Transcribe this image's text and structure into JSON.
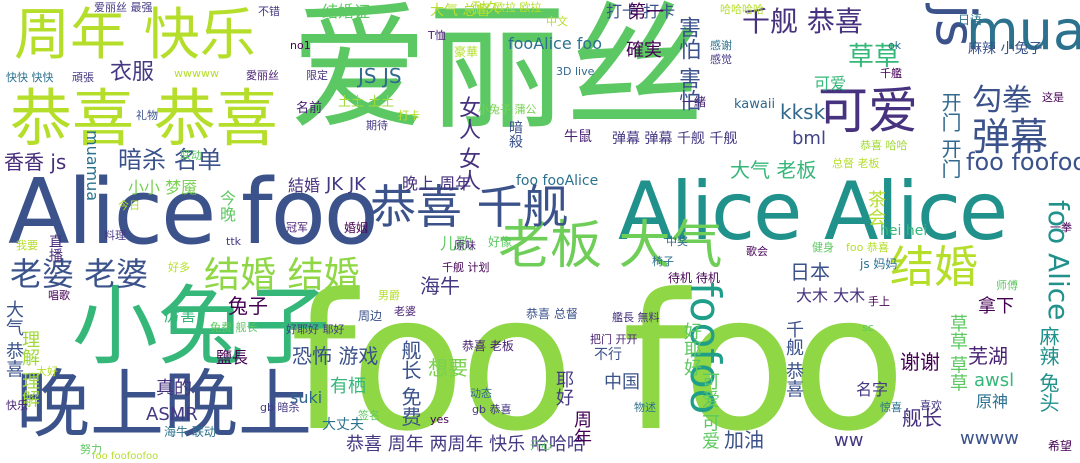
{
  "words": [
    {
      "text": "爱丽丝",
      "color": "#5cc863"
    },
    {
      "text": "foo foo",
      "color": "#8fd744"
    },
    {
      "text": "Alice foo",
      "color": "#3b528b"
    },
    {
      "text": "Alice Alice",
      "color": "#21918c"
    },
    {
      "text": "小兔子",
      "color": "#35b779"
    },
    {
      "text": "晚上晚上",
      "color": "#3b528b"
    },
    {
      "text": "恭喜 恭喜",
      "color": "#b5de2b"
    },
    {
      "text": "周年 快乐",
      "color": "#b5de2b"
    },
    {
      "text": "老板 大气",
      "color": "#6ece58"
    },
    {
      "text": "恭喜 千舰",
      "color": "#3b528b"
    },
    {
      "text": "mua",
      "color": "#2c728e"
    },
    {
      "text": "js",
      "color": "#3b528b"
    },
    {
      "text": "可爱",
      "color": "#46327e"
    },
    {
      "text": "弹幕",
      "color": "#3b528b"
    },
    {
      "text": "结婚 结婚",
      "color": "#8fd744"
    },
    {
      "text": "结婚",
      "color": "#b5de2b"
    },
    {
      "text": "老婆 老婆",
      "color": "#3b528b"
    },
    {
      "text": "千舰 恭喜",
      "color": "#46327e"
    },
    {
      "text": "勾拳",
      "color": "#3b528b"
    },
    {
      "text": "草草",
      "color": "#35b779"
    },
    {
      "text": "foo foofoo",
      "color": "#3b528b"
    },
    {
      "text": "foo Alice",
      "color": "#21918c"
    },
    {
      "text": "foofoo",
      "color": "#1f9e89"
    },
    {
      "text": "暗杀 名单",
      "color": "#3b528b"
    },
    {
      "text": "香香 js",
      "color": "#472d7b"
    },
    {
      "text": "衣服",
      "color": "#443983"
    },
    {
      "text": "JS JS",
      "color": "#31688e"
    },
    {
      "text": "女人 女人",
      "color": "#46327e"
    },
    {
      "text": "害怕 害怕",
      "color": "#3b528b"
    },
    {
      "text": "kksk",
      "color": "#31688e"
    },
    {
      "text": "可爱",
      "color": "#35b779"
    },
    {
      "text": "打卡 打卡",
      "color": "#3b528b"
    },
    {
      "text": "fooAlice foo",
      "color": "#2c728e"
    },
    {
      "text": "麻辣 小兔子",
      "color": "#3b528b"
    },
    {
      "text": "开门 开门",
      "color": "#31688e"
    },
    {
      "text": "確実",
      "color": "#440154"
    },
    {
      "text": "第一",
      "color": "#440154"
    },
    {
      "text": "大气 老板",
      "color": "#35b779"
    },
    {
      "text": "JK JK",
      "color": "#443983"
    },
    {
      "text": "結婚",
      "color": "#46327e"
    },
    {
      "text": "晚上 周年",
      "color": "#46327e"
    },
    {
      "text": "foo fooAlice",
      "color": "#2c728e"
    },
    {
      "text": "bml",
      "color": "#414487"
    },
    {
      "text": "hei hei",
      "color": "#35b779"
    },
    {
      "text": "小小 梦魇",
      "color": "#7ad151"
    },
    {
      "text": "今晚",
      "color": "#5ec962"
    },
    {
      "text": "茶会",
      "color": "#b5de2b"
    },
    {
      "text": "日本",
      "color": "#3b528b"
    },
    {
      "text": "大木 大木",
      "color": "#46327e"
    },
    {
      "text": "海牛",
      "color": "#443983"
    },
    {
      "text": "儿歌",
      "color": "#5ec962"
    },
    {
      "text": "兔子",
      "color": "#440154"
    },
    {
      "text": "拿下",
      "color": "#440154"
    },
    {
      "text": "厉害",
      "color": "#35b779"
    },
    {
      "text": "恐怖 游戏",
      "color": "#3b528b"
    },
    {
      "text": "鹽長",
      "color": "#440154"
    },
    {
      "text": "有栖",
      "color": "#35b779"
    },
    {
      "text": "想要",
      "color": "#7ad151"
    },
    {
      "text": "真的",
      "color": "#46327e"
    },
    {
      "text": "ASMR",
      "color": "#443983"
    },
    {
      "text": "suki",
      "color": "#31688e"
    },
    {
      "text": "大丈夫",
      "color": "#2c728e"
    },
    {
      "text": "中国",
      "color": "#3b528b"
    },
    {
      "text": "不行",
      "color": "#3b528b"
    },
    {
      "text": "恭喜 周年 两周年 快乐 哈哈哈",
      "color": "#443983"
    },
    {
      "text": "加油",
      "color": "#3b528b"
    },
    {
      "text": "ww",
      "color": "#443983"
    },
    {
      "text": "舰长",
      "color": "#46327e"
    },
    {
      "text": "wwww",
      "color": "#3b528b"
    },
    {
      "text": "谢谢",
      "color": "#440154"
    },
    {
      "text": "awsl",
      "color": "#35b779"
    },
    {
      "text": "名字",
      "color": "#443983"
    },
    {
      "text": "原神",
      "color": "#2c728e"
    },
    {
      "text": "芜湖",
      "color": "#482173"
    },
    {
      "text": "草草 草草",
      "color": "#5ec962"
    },
    {
      "text": "可爱 可爱",
      "color": "#5ec962"
    },
    {
      "text": "周年",
      "color": "#440154"
    },
    {
      "text": "耶好",
      "color": "#443983"
    },
    {
      "text": "好耶好",
      "color": "#5ec962"
    },
    {
      "text": "麻辣 兔头",
      "color": "#21918c"
    },
    {
      "text": "大气 恭喜",
      "color": "#3b528b"
    },
    {
      "text": "理解 理解",
      "color": "#a0da39"
    },
    {
      "text": "舰长 免费",
      "color": "#3b528b"
    },
    {
      "text": "千舰 恭喜",
      "color": "#3b528b"
    },
    {
      "text": "muamua",
      "color": "#2c728e"
    },
    {
      "text": "直播",
      "color": "#472d7b"
    },
    {
      "text": "爱丽丝 最强",
      "color": "#443983"
    },
    {
      "text": "不错",
      "color": "#443983"
    },
    {
      "text": "结婚证",
      "color": "#5ec962"
    },
    {
      "text": "大气 总督",
      "color": "#b5de2b"
    },
    {
      "text": "耐久",
      "color": "#b5de2b"
    },
    {
      "text": "欧拉 欧拉",
      "color": "#b5de2b"
    },
    {
      "text": "中文",
      "color": "#b5de2b"
    },
    {
      "text": "日语",
      "color": "#2c728e"
    },
    {
      "text": "no1",
      "color": "#440154"
    },
    {
      "text": "豪華",
      "color": "#b5de2b"
    },
    {
      "text": "3D live",
      "color": "#31688e"
    },
    {
      "text": "牛鼠",
      "color": "#482173"
    },
    {
      "text": "弹幕 弹幕 千舰 千舰",
      "color": "#443983"
    },
    {
      "text": "暗殺",
      "color": "#3b528b"
    },
    {
      "text": "名前",
      "color": "#482173"
    },
    {
      "text": "土土 土土",
      "color": "#a0da39"
    },
    {
      "text": "一緒",
      "color": "#482173"
    },
    {
      "text": "kawaii",
      "color": "#31688e"
    },
    {
      "text": "待机 待机",
      "color": "#440154"
    },
    {
      "text": "健身",
      "color": "#5ec962"
    },
    {
      "text": "foo 恭喜",
      "color": "#b5de2b"
    },
    {
      "text": "js 妈妈",
      "color": "#2c728e"
    },
    {
      "text": "周边",
      "color": "#3b528b"
    },
    {
      "text": "恭喜 总督",
      "color": "#3b528b"
    },
    {
      "text": "恭喜 老板",
      "color": "#482173"
    },
    {
      "text": "总督 老板",
      "color": "#b5de2b"
    },
    {
      "text": "希望",
      "color": "#440154"
    },
    {
      "text": "开心",
      "color": "#5ec962"
    },
    {
      "text": "努力",
      "color": "#5ec962"
    },
    {
      "text": "foo foofoofoo",
      "color": "#b5de2b"
    },
    {
      "text": "wwwww",
      "color": "#b5de2b"
    },
    {
      "text": "快快 快快",
      "color": "#2c728e"
    },
    {
      "text": "頑張",
      "color": "#443983"
    },
    {
      "text": "礼物",
      "color": "#3b528b"
    },
    {
      "text": "联动",
      "color": "#5ec962"
    },
    {
      "text": "唱歌",
      "color": "#440154"
    },
    {
      "text": "海牛 联动",
      "color": "#2c728e"
    },
    {
      "text": "gb 暗杀",
      "color": "#443983"
    },
    {
      "text": "gb 恭喜",
      "color": "#443983"
    },
    {
      "text": "动态",
      "color": "#31688e"
    },
    {
      "text": "物述",
      "color": "#2c728e"
    },
    {
      "text": "喜欢",
      "color": "#443983"
    },
    {
      "text": "惊喜",
      "color": "#2c728e"
    },
    {
      "text": "yes",
      "color": "#440154"
    },
    {
      "text": "把门 开开",
      "color": "#482173"
    },
    {
      "text": "艦長 無料",
      "color": "#46327e"
    },
    {
      "text": "男爵",
      "color": "#b5de2b"
    },
    {
      "text": "老婆",
      "color": "#482173"
    },
    {
      "text": "感谢",
      "color": "#2c728e"
    },
    {
      "text": "感觉",
      "color": "#443983"
    },
    {
      "text": "歌会",
      "color": "#440154"
    },
    {
      "text": "师傅",
      "color": "#5ec962"
    },
    {
      "text": "手上",
      "color": "#440154"
    },
    {
      "text": "这是",
      "color": "#440154"
    },
    {
      "text": "ok",
      "color": "#2c728e"
    },
    {
      "text": "千艦",
      "color": "#440154"
    },
    {
      "text": "期待",
      "color": "#443983"
    },
    {
      "text": "限定",
      "color": "#46327e"
    },
    {
      "text": "冠军",
      "color": "#482173"
    },
    {
      "text": "婚姻",
      "color": "#440154"
    },
    {
      "text": "ttk",
      "color": "#443983"
    },
    {
      "text": "原味",
      "color": "#482173"
    },
    {
      "text": "好像",
      "color": "#5ec962"
    },
    {
      "text": "一拳",
      "color": "#440154"
    },
    {
      "text": "免费 舰长",
      "color": "#5ec962"
    },
    {
      "text": "好耶好 耶好",
      "color": "#443983"
    },
    {
      "text": "哈哈哈哈",
      "color": "#b5de2b"
    },
    {
      "text": "愛丽丝",
      "color": "#482173"
    },
    {
      "text": "T恤",
      "color": "#482173"
    },
    {
      "text": "小兔子 蒲公",
      "color": "#7ad151"
    },
    {
      "text": "千舰 计划",
      "color": "#440154"
    },
    {
      "text": "签名",
      "color": "#5ec962"
    },
    {
      "text": "中奖",
      "color": "#31688e"
    },
    {
      "text": "今日",
      "color": "#b5de2b"
    },
    {
      "text": "我要",
      "color": "#b5de2b"
    },
    {
      "text": "料理",
      "color": "#443983"
    },
    {
      "text": "打卡",
      "color": "#b5de2b"
    },
    {
      "text": "sc",
      "color": "#5ec962"
    },
    {
      "text": "好多",
      "color": "#b5de2b"
    },
    {
      "text": "大好",
      "color": "#b5de2b"
    },
    {
      "text": "快乐",
      "color": "#482173"
    },
    {
      "text": "恭喜 哈哈",
      "color": "#a0da39"
    },
    {
      "text": "椅子",
      "color": "#2c728e"
    }
  ]
}
